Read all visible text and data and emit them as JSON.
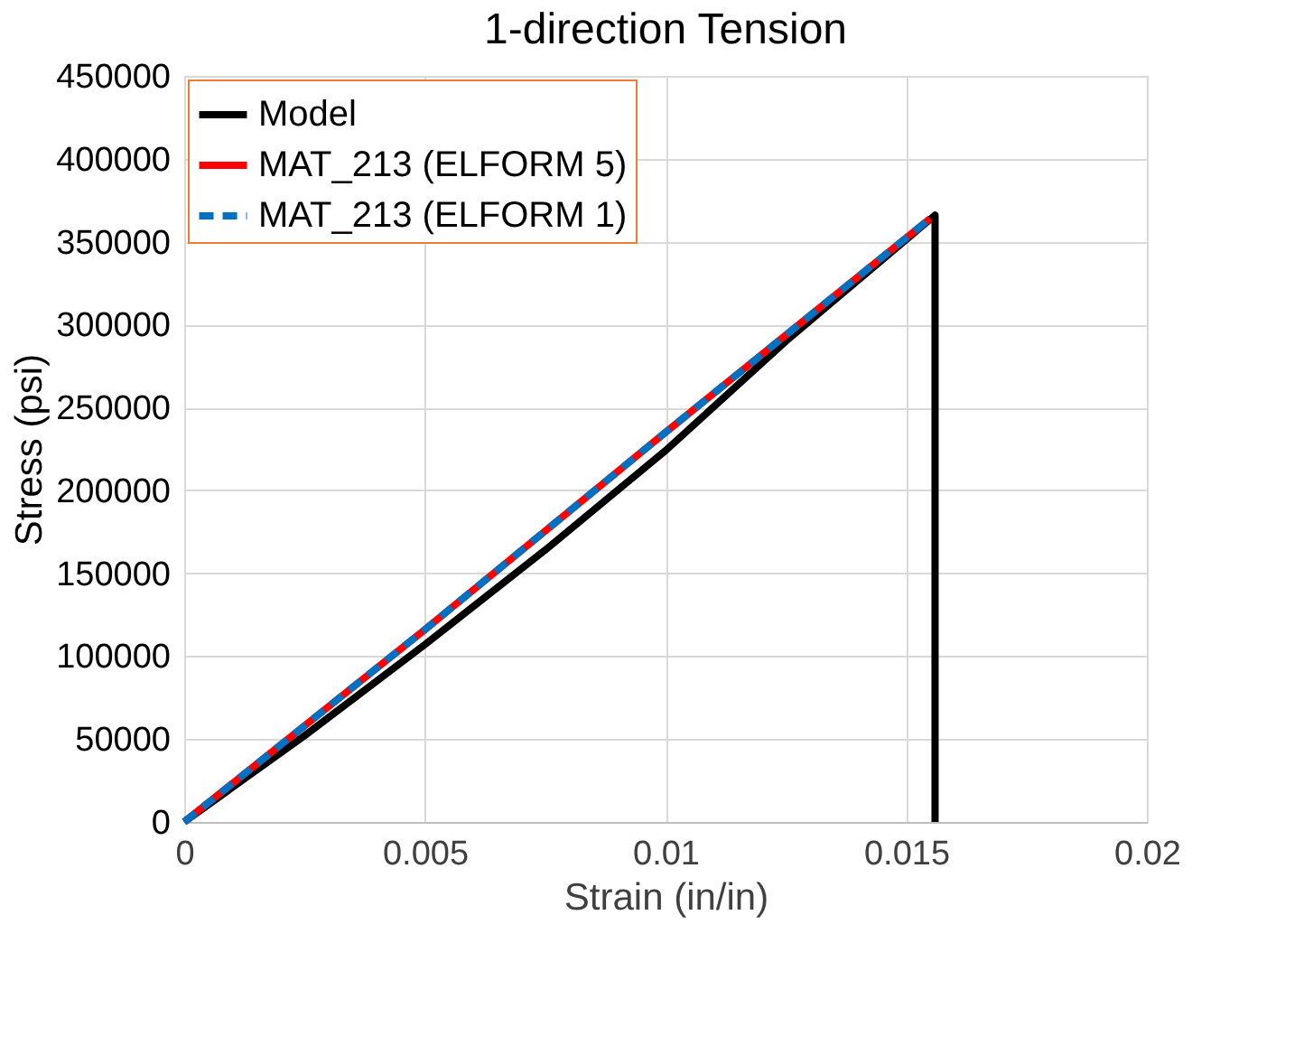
{
  "chart_data": {
    "type": "line",
    "title": "1-direction Tension",
    "xlabel": "Strain (in/in)",
    "ylabel": "Stress (psi)",
    "xlim": [
      0,
      0.02
    ],
    "xticks": [
      0,
      0.005,
      0.01,
      0.015,
      0.02
    ],
    "ylim": [
      0,
      450000
    ],
    "yticks": [
      0,
      50000,
      100000,
      150000,
      200000,
      250000,
      300000,
      350000,
      400000,
      450000
    ],
    "grid": true,
    "legend": "top left",
    "marker": "none",
    "series": [
      {
        "name": "Model",
        "color": "#000000",
        "line_style": "solid",
        "x": [
          0,
          0.0025,
          0.005,
          0.0075,
          0.01,
          0.0125,
          0.0156,
          0.0156
        ],
        "values": [
          0,
          52000,
          107000,
          164000,
          224000,
          290000,
          366000,
          0
        ]
      },
      {
        "name": "MAT_213 (ELFORM 5)",
        "color": "#ff0000",
        "line_style": "solid",
        "x": [
          0,
          0.005,
          0.01,
          0.0155
        ],
        "values": [
          0,
          116000,
          235000,
          364000
        ]
      },
      {
        "name": "MAT_213 (ELFORM 1)",
        "color": "#0070c0",
        "line_style": "dashed",
        "x": [
          0,
          0.005,
          0.01,
          0.0155
        ],
        "values": [
          0,
          116000,
          235000,
          364000
        ]
      }
    ]
  }
}
